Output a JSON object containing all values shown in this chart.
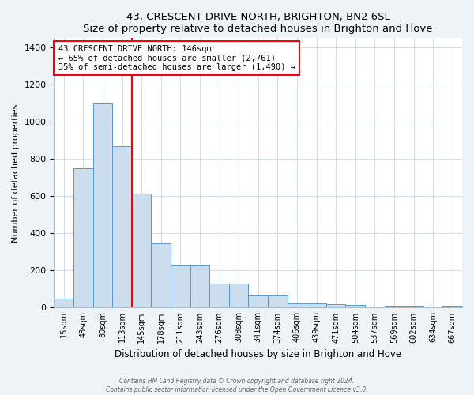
{
  "title": "43, CRESCENT DRIVE NORTH, BRIGHTON, BN2 6SL",
  "subtitle": "Size of property relative to detached houses in Brighton and Hove",
  "xlabel": "Distribution of detached houses by size in Brighton and Hove",
  "ylabel": "Number of detached properties",
  "bar_color": "#ccdded",
  "bar_edge_color": "#5599cc",
  "bar_edge_width": 0.7,
  "categories": [
    "15sqm",
    "48sqm",
    "80sqm",
    "113sqm",
    "145sqm",
    "178sqm",
    "211sqm",
    "243sqm",
    "276sqm",
    "308sqm",
    "341sqm",
    "374sqm",
    "406sqm",
    "439sqm",
    "471sqm",
    "504sqm",
    "537sqm",
    "569sqm",
    "602sqm",
    "634sqm",
    "667sqm"
  ],
  "values": [
    47,
    750,
    1100,
    870,
    615,
    345,
    228,
    228,
    130,
    130,
    65,
    65,
    25,
    25,
    18,
    13,
    0,
    10,
    10,
    0,
    10
  ],
  "red_line_index": 3.5,
  "annotation_title": "43 CRESCENT DRIVE NORTH: 146sqm",
  "annotation_line2": "← 65% of detached houses are smaller (2,761)",
  "annotation_line3": "35% of semi-detached houses are larger (1,490) →",
  "ylim": [
    0,
    1450
  ],
  "yticks": [
    0,
    200,
    400,
    600,
    800,
    1000,
    1200,
    1400
  ],
  "footer1": "Contains HM Land Registry data © Crown copyright and database right 2024.",
  "footer2": "Contains public sector information licensed under the Open Government Licence v3.0.",
  "background_color": "#eef3f8",
  "plot_background": "#ffffff",
  "grid_color": "#d0dce8"
}
